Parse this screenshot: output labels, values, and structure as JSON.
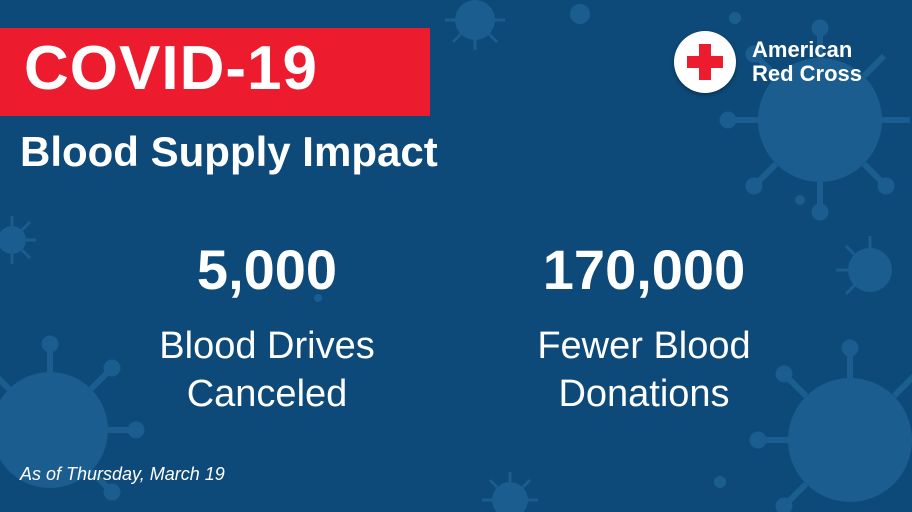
{
  "title": "COVID-19",
  "subtitle": "Blood Supply Impact",
  "logo": {
    "line1": "American",
    "line2": "Red Cross",
    "icon": "red-cross-icon"
  },
  "stats": [
    {
      "number": "5,000",
      "label_line1": "Blood Drives",
      "label_line2": "Canceled"
    },
    {
      "number": "170,000",
      "label_line1": "Fewer Blood",
      "label_line2": "Donations"
    }
  ],
  "footnote": "As of Thursday, March 19",
  "colors": {
    "background": "#0d4a79",
    "accent_red": "#ed1b2e",
    "text": "#ffffff",
    "virus_pattern": "#1b5d8f"
  },
  "decoration": "virus-pattern"
}
